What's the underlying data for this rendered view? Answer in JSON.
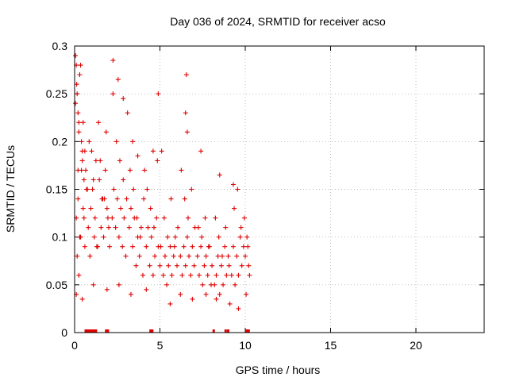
{
  "chart_data": {
    "type": "scatter",
    "title": "Day 036 of 2024, SRMTID for receiver acso",
    "xlabel": "GPS time / hours",
    "ylabel": "SRMTID / TECUs",
    "xlim": [
      0,
      24
    ],
    "ylim": [
      0,
      0.3
    ],
    "x_ticks": [
      0,
      5,
      10,
      15,
      20
    ],
    "x_tick_labels": [
      "0",
      "5",
      "10",
      "15",
      "20"
    ],
    "y_ticks": [
      0,
      0.05,
      0.1,
      0.15,
      0.2,
      0.25,
      0.3
    ],
    "y_tick_labels": [
      "0",
      "0.05",
      "0.1",
      "0.15",
      "0.2",
      "0.25",
      "0.3"
    ],
    "grid": true,
    "marker": "plus",
    "color": "#e00000",
    "series": [
      {
        "name": "SRMTID",
        "x": [
          0.05,
          0.1,
          0.12,
          0.15,
          0.2,
          0.25,
          0.3,
          0.35,
          0.4,
          0.45,
          0.5,
          0.55,
          0.6,
          0.1,
          0.2,
          0.3,
          0.4,
          0.5,
          0.6,
          0.7,
          0.8,
          0.9,
          1.0,
          1.1,
          1.2,
          1.3,
          1.4,
          1.5,
          1.6,
          1.7,
          1.8,
          1.9,
          2.0,
          0.15,
          0.35,
          0.55,
          0.75,
          0.95,
          1.15,
          1.35,
          1.55,
          1.75,
          1.95,
          0.25,
          0.45,
          0.65,
          0.85,
          1.05,
          1.25,
          1.45,
          1.65,
          1.85,
          2.05,
          2.2,
          2.3,
          2.4,
          2.5,
          2.6,
          2.7,
          2.8,
          2.9,
          3.0,
          2.25,
          2.45,
          2.65,
          2.85,
          3.05,
          3.2,
          3.3,
          3.4,
          3.5,
          3.6,
          3.7,
          3.8,
          3.9,
          4.0,
          3.25,
          3.45,
          3.65,
          3.85,
          4.05,
          4.2,
          4.3,
          4.4,
          4.5,
          4.6,
          4.7,
          4.8,
          4.9,
          5.0,
          4.25,
          4.45,
          4.65,
          4.85,
          5.05,
          5.2,
          5.3,
          5.4,
          5.5,
          5.6,
          5.7,
          5.8,
          5.9,
          6.0,
          5.25,
          5.45,
          5.65,
          5.85,
          6.05,
          6.2,
          6.3,
          6.4,
          6.5,
          6.6,
          6.7,
          6.8,
          6.9,
          7.0,
          6.25,
          6.45,
          6.65,
          6.85,
          7.05,
          7.2,
          7.3,
          7.4,
          7.5,
          7.6,
          7.7,
          7.8,
          7.9,
          8.0,
          7.25,
          7.45,
          7.65,
          7.85,
          8.05,
          8.2,
          8.3,
          8.4,
          8.5,
          8.6,
          8.7,
          8.8,
          8.9,
          9.0,
          8.25,
          8.45,
          8.65,
          8.85,
          9.05,
          9.2,
          9.3,
          9.4,
          9.5,
          9.6,
          9.7,
          9.8,
          9.9,
          10.0,
          10.1,
          10.2,
          10.25,
          9.35,
          9.55,
          9.75,
          9.95,
          10.15,
          2.25,
          2.55,
          2.85,
          3.1,
          3.4,
          3.7,
          4.1,
          4.6,
          4.9,
          5.1,
          6.55,
          6.5,
          6.6,
          7.4,
          8.5,
          9.3,
          0.05,
          0.2,
          0.25,
          0.1,
          0.45,
          1.1,
          1.9,
          2.6,
          3.3,
          4.2,
          5.6,
          6.2,
          6.9,
          7.7,
          8.3,
          9.1,
          9.6,
          10.05
        ],
        "y": [
          0.29,
          0.28,
          0.26,
          0.25,
          0.23,
          0.21,
          0.27,
          0.28,
          0.2,
          0.18,
          0.22,
          0.16,
          0.19,
          0.12,
          0.14,
          0.1,
          0.17,
          0.13,
          0.09,
          0.15,
          0.11,
          0.08,
          0.19,
          0.16,
          0.12,
          0.09,
          0.22,
          0.18,
          0.14,
          0.1,
          0.17,
          0.13,
          0.11,
          0.08,
          0.1,
          0.12,
          0.15,
          0.13,
          0.1,
          0.09,
          0.11,
          0.14,
          0.12,
          0.22,
          0.19,
          0.17,
          0.2,
          0.15,
          0.18,
          0.16,
          0.14,
          0.21,
          0.09,
          0.12,
          0.15,
          0.11,
          0.14,
          0.1,
          0.13,
          0.09,
          0.12,
          0.08,
          0.25,
          0.2,
          0.18,
          0.16,
          0.14,
          0.11,
          0.13,
          0.09,
          0.12,
          0.07,
          0.1,
          0.08,
          0.11,
          0.06,
          0.17,
          0.15,
          0.12,
          0.1,
          0.14,
          0.09,
          0.11,
          0.07,
          0.1,
          0.06,
          0.08,
          0.12,
          0.09,
          0.07,
          0.15,
          0.13,
          0.11,
          0.18,
          0.09,
          0.06,
          0.08,
          0.05,
          0.07,
          0.09,
          0.06,
          0.08,
          0.1,
          0.07,
          0.12,
          0.1,
          0.14,
          0.09,
          0.11,
          0.08,
          0.06,
          0.09,
          0.07,
          0.1,
          0.08,
          0.06,
          0.09,
          0.07,
          0.17,
          0.14,
          0.12,
          0.15,
          0.11,
          0.08,
          0.06,
          0.09,
          0.05,
          0.07,
          0.08,
          0.06,
          0.09,
          0.05,
          0.11,
          0.1,
          0.12,
          0.09,
          0.07,
          0.05,
          0.06,
          0.08,
          0.04,
          0.07,
          0.05,
          0.09,
          0.06,
          0.08,
          0.12,
          0.1,
          0.08,
          0.11,
          0.07,
          0.06,
          0.09,
          0.05,
          0.08,
          0.06,
          0.1,
          0.07,
          0.09,
          0.08,
          0.1,
          0.07,
          0.06,
          0.13,
          0.15,
          0.11,
          0.12,
          0.09,
          0.285,
          0.265,
          0.245,
          0.23,
          0.2,
          0.185,
          0.17,
          0.19,
          0.25,
          0.19,
          0.27,
          0.23,
          0.21,
          0.19,
          0.165,
          0.155,
          0.24,
          0.17,
          0.06,
          0.04,
          0.035,
          0.05,
          0.045,
          0.05,
          0.04,
          0.045,
          0.03,
          0.04,
          0.035,
          0.04,
          0.035,
          0.03,
          0.025,
          0.04
        ],
        "rug_x": [
          0.65,
          0.75,
          0.85,
          0.95,
          1.05,
          1.15,
          1.25,
          1.85,
          1.95,
          4.45,
          4.55,
          8.15,
          8.85,
          9.0,
          10.1,
          10.2
        ]
      }
    ]
  }
}
